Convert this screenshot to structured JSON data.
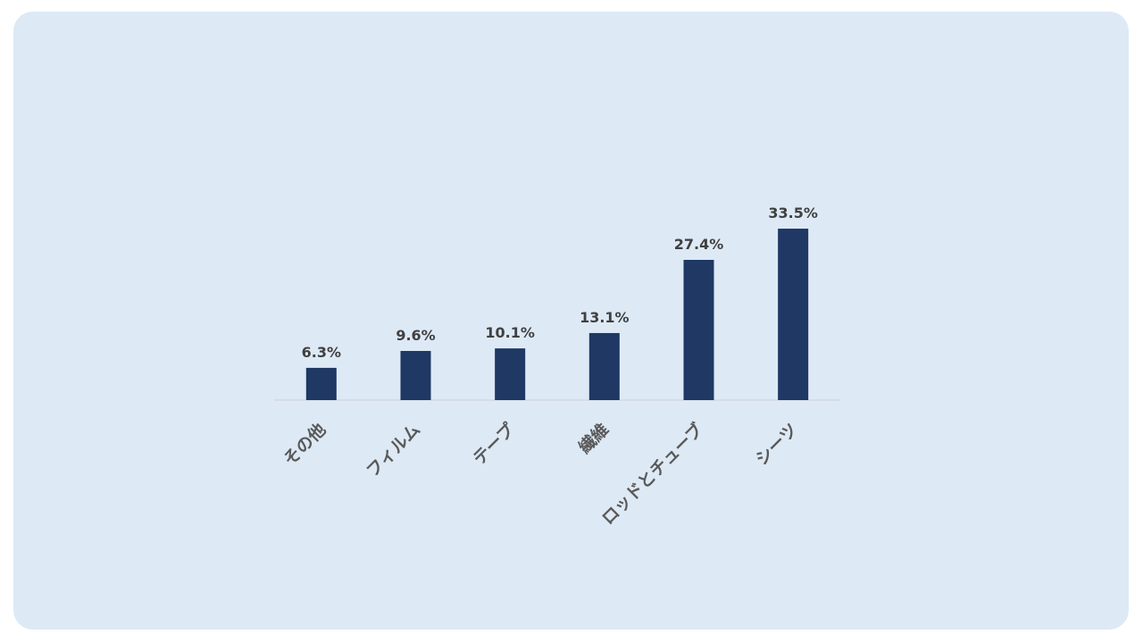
{
  "chart_data": {
    "type": "bar",
    "categories": [
      "その他",
      "フィルム",
      "テープ",
      "繊維",
      "ロッドとチューブ",
      "シーツ"
    ],
    "values": [
      6.3,
      9.6,
      10.1,
      13.1,
      27.4,
      33.5
    ],
    "value_labels": [
      "6.3%",
      "9.6%",
      "10.1%",
      "13.1%",
      "27.4%",
      "33.5%"
    ],
    "color": "#1f3864"
  }
}
